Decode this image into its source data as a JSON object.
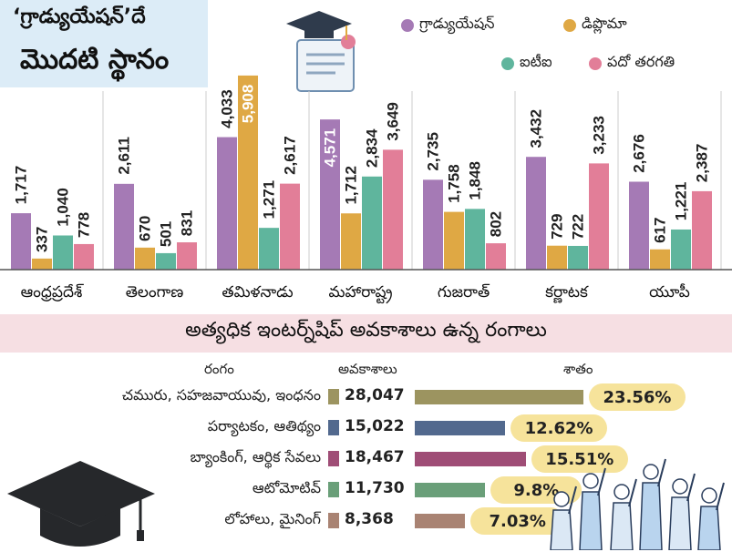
{
  "headline": {
    "line1": "‘గ్రాడ్యుయేషన్’దే",
    "line2": "మొదటి స్థానం"
  },
  "chart_data": [
    {
      "type": "bar",
      "categories": [
        "ఆంధ్రప్రదేశ్",
        "తెలంగాణ",
        "తమిళనాడు",
        "మహారాష్ట్ర",
        "గుజరాత్",
        "కర్ణాటక",
        "యూపీ"
      ],
      "series": [
        {
          "name": "గ్రాడ్యుయేషన్",
          "color": "#a57ab5",
          "values": [
            1717,
            2611,
            4033,
            4571,
            2735,
            3432,
            2676
          ]
        },
        {
          "name": "డిప్లొమా",
          "color": "#dfa844",
          "values": [
            337,
            670,
            5908,
            1712,
            1758,
            729,
            617
          ]
        },
        {
          "name": "ఐటీఐ",
          "color": "#5fb59d",
          "values": [
            1040,
            501,
            1271,
            2834,
            1848,
            722,
            1221
          ]
        },
        {
          "name": "పదో తరగతి",
          "color": "#e27e98",
          "values": [
            778,
            831,
            2617,
            3649,
            802,
            3233,
            2387
          ]
        }
      ],
      "value_labels": [
        [
          "1,717",
          "337",
          "1,040",
          "778"
        ],
        [
          "2,611",
          "670",
          "501",
          "831"
        ],
        [
          "4,033",
          "5,908",
          "1,271",
          "2,617"
        ],
        [
          "4,571",
          "1,712",
          "2,834",
          "3,649"
        ],
        [
          "2,735",
          "1,758",
          "1,848",
          "802"
        ],
        [
          "3,432",
          "729",
          "722",
          "3,233"
        ],
        [
          "2,676",
          "617",
          "1,221",
          "2,387"
        ]
      ],
      "legend_position": "top-right",
      "ylim": [
        0,
        6100
      ],
      "grid": false
    },
    {
      "type": "bar",
      "title": "అత్యధిక ఇంటర్న్‌షిప్ అవకాశాలు ఉన్న రంగాలు",
      "column_headers": {
        "sector": "రంగం",
        "opportunities": "అవకాశాలు",
        "percent": "శాతం"
      },
      "categories": [
        "చమురు, సహజవాయువు, ఇంధనం",
        "పర్యాటకం, ఆతిథ్యం",
        "బ్యాంకింగ్, ఆర్థిక సేవలు",
        "ఆటోమోటివ్",
        "లోహాలు, మైనింగ్"
      ],
      "opportunities": [
        28047,
        15022,
        18467,
        11730,
        8368
      ],
      "opportunity_labels": [
        "28,047",
        "15,022",
        "18,467",
        "11,730",
        "8,368"
      ],
      "percent": [
        23.56,
        12.62,
        15.51,
        9.8,
        7.03
      ],
      "percent_labels": [
        "23.56%",
        "12.62%",
        "15.51%",
        "9.8%",
        "7.03%"
      ],
      "colors": [
        "#9c9460",
        "#52698e",
        "#9f4d76",
        "#6a9f79",
        "#a98373"
      ]
    }
  ]
}
